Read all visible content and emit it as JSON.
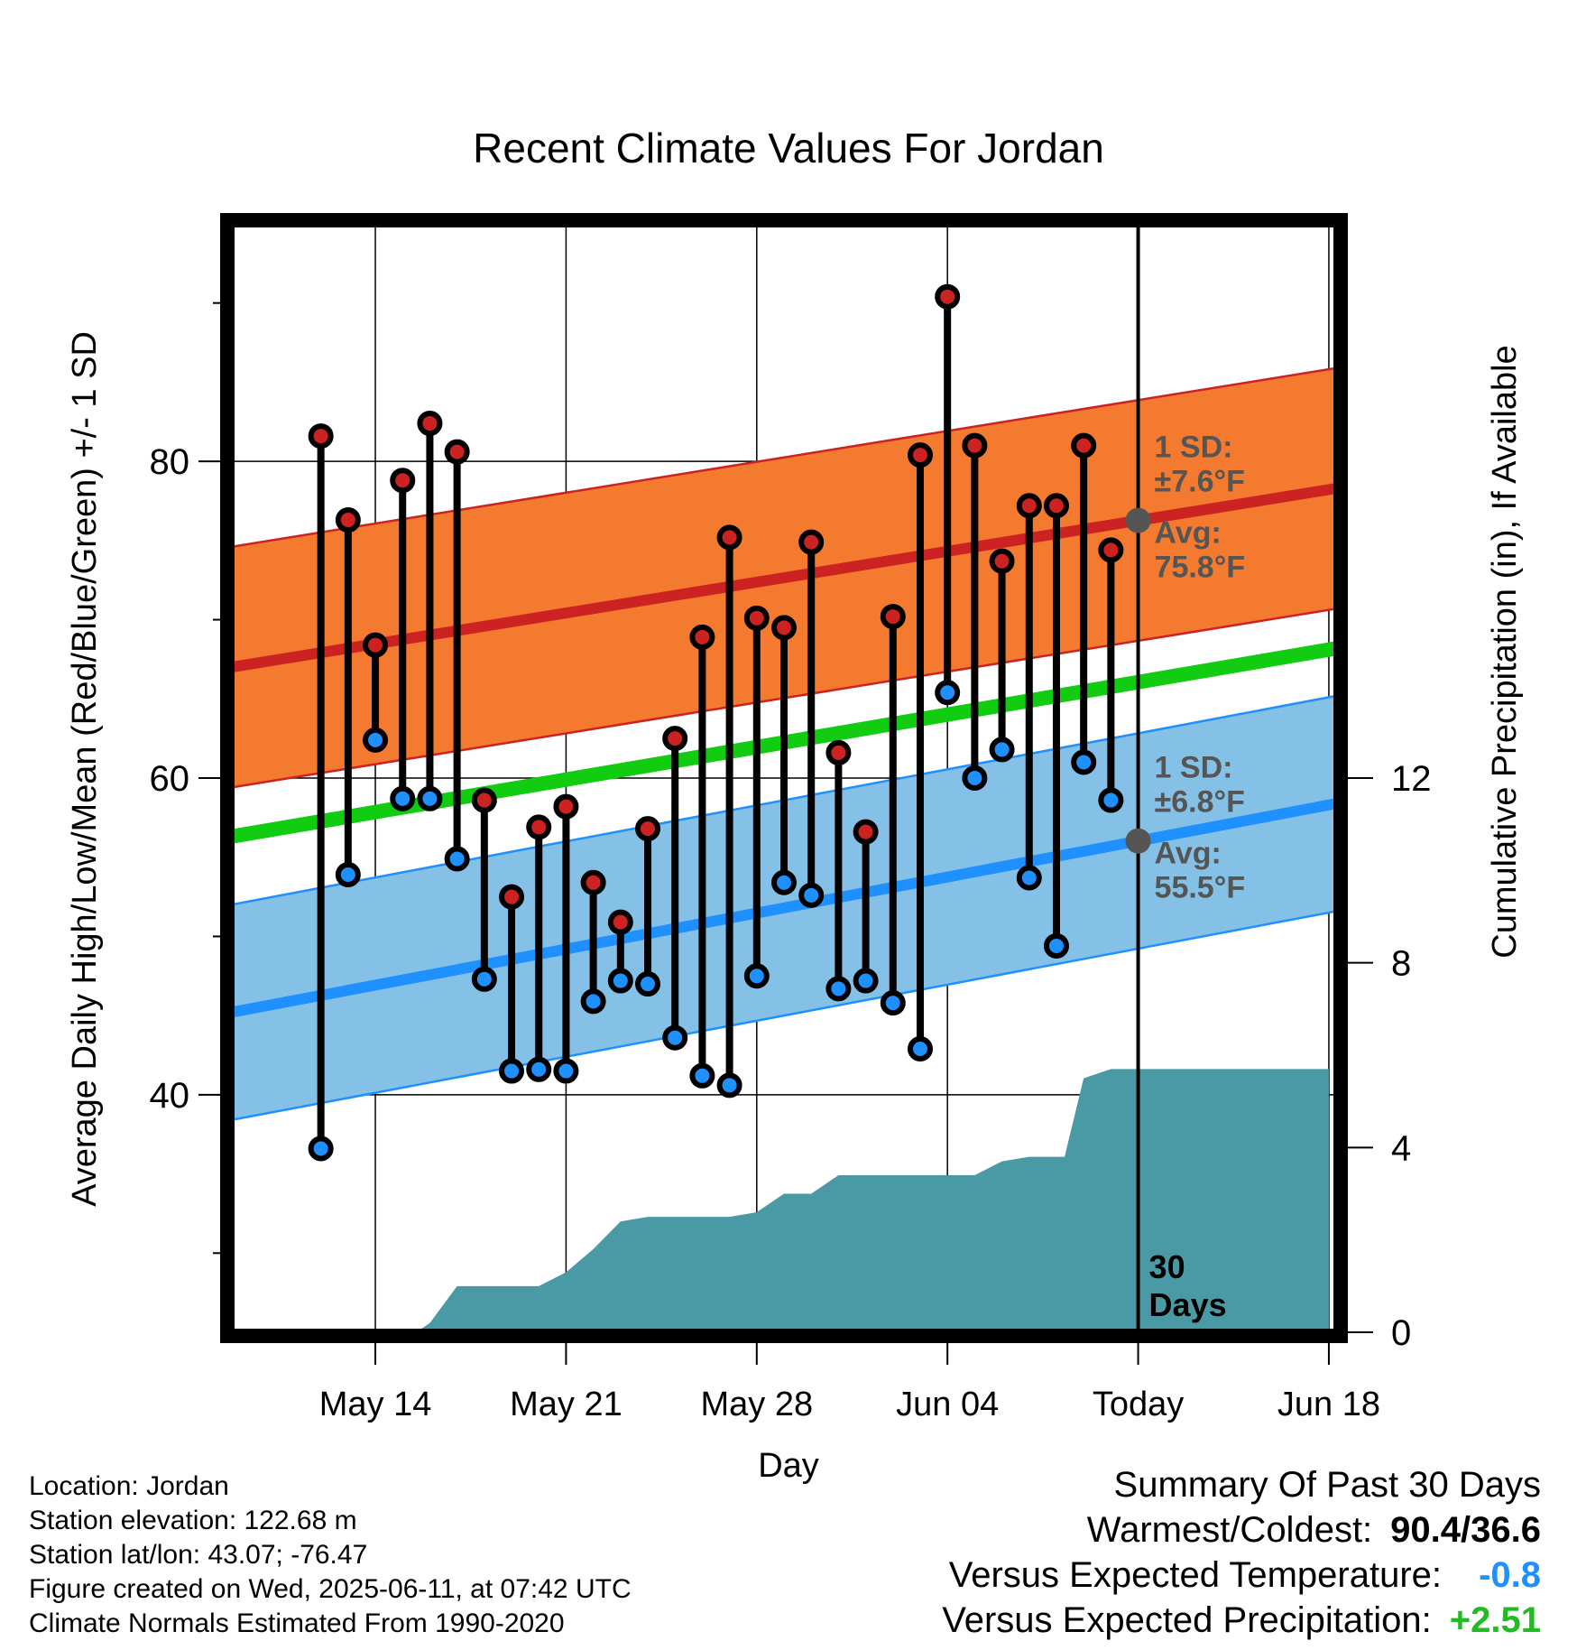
{
  "chart_data": {
    "type": "line",
    "title": "Recent Climate Values For Jordan",
    "xlabel": "Day",
    "ylabel": "Average Daily High/Low/Mean (Red/Blue/Green) +/- 1 SD",
    "y2label": "Cumulative Precipitation (in), If Available",
    "ylim": [
      25,
      95
    ],
    "y2lim": [
      0,
      24
    ],
    "yticks": [
      40,
      60,
      80
    ],
    "y2ticks": [
      0,
      4,
      8,
      12
    ],
    "x_range_days": [
      -33.3,
      7.3
    ],
    "xticks": [
      {
        "day": -28,
        "label": "May 14"
      },
      {
        "day": -21,
        "label": "May 21"
      },
      {
        "day": -14,
        "label": "May 28"
      },
      {
        "day": -7,
        "label": "Jun 04"
      },
      {
        "day": 0,
        "label": "Today"
      },
      {
        "day": 7,
        "label": "Jun 18"
      }
    ],
    "today_label": "30 Days",
    "normals": {
      "high_mean": [
        67.0,
        78.3
      ],
      "high_sd": 7.6,
      "low_mean": [
        45.2,
        58.4
      ],
      "low_sd": 6.8,
      "mean": [
        56.3,
        68.2
      ]
    },
    "annotations": {
      "high_sd": "1 SD: ±7.6°F",
      "high_avg": "Avg: 75.8°F",
      "low_sd": "1 SD: ±6.8°F",
      "low_avg": "Avg: 55.5°F"
    },
    "series": [
      {
        "name": "High",
        "color": "#cc2222",
        "x": [
          -30,
          -29,
          -28,
          -27,
          -26,
          -25,
          -24,
          -23,
          -22,
          -21,
          -20,
          -19,
          -18,
          -17,
          -16,
          -15,
          -14,
          -13,
          -12,
          -11,
          -10,
          -9,
          -8,
          -7,
          -6,
          -5,
          -4,
          -3,
          -2,
          -1
        ],
        "values": [
          81.6,
          76.3,
          68.4,
          78.8,
          82.4,
          80.6,
          58.6,
          52.5,
          56.9,
          58.2,
          53.4,
          50.9,
          56.8,
          62.5,
          68.9,
          75.2,
          70.1,
          69.5,
          74.9,
          61.6,
          56.6,
          70.2,
          80.4,
          90.4,
          81.0,
          73.7,
          77.2,
          77.2,
          81.0,
          74.4
        ]
      },
      {
        "name": "Low",
        "color": "#1e90ff",
        "x": [
          -30,
          -29,
          -28,
          -27,
          -26,
          -25,
          -24,
          -23,
          -22,
          -21,
          -20,
          -19,
          -18,
          -17,
          -16,
          -15,
          -14,
          -13,
          -12,
          -11,
          -10,
          -9,
          -8,
          -7,
          -6,
          -5,
          -4,
          -3,
          -2,
          -1
        ],
        "values": [
          36.6,
          53.9,
          62.4,
          58.7,
          58.7,
          54.9,
          47.3,
          41.5,
          41.6,
          41.5,
          45.9,
          47.2,
          47.0,
          43.6,
          41.2,
          40.6,
          47.5,
          53.4,
          52.6,
          46.7,
          47.2,
          45.8,
          42.9,
          65.4,
          60.0,
          61.8,
          53.7,
          49.4,
          61.0,
          58.6
        ]
      },
      {
        "name": "Cumulative Precipitation",
        "color": "#4a9aa5",
        "x": [
          -30,
          -29,
          -28,
          -27,
          -26.5,
          -26,
          -25,
          -24,
          -23,
          -22,
          -21,
          -20,
          -19,
          -18,
          -17,
          -16,
          -15,
          -14,
          -13,
          -12,
          -11,
          -10,
          -9,
          -8,
          -7,
          -6,
          -5,
          -4,
          -3,
          -2.7,
          -2,
          -1,
          7
        ],
        "values": [
          0,
          0,
          0,
          0,
          0,
          0.2,
          1.0,
          1.0,
          1.0,
          1.0,
          1.3,
          1.8,
          2.4,
          2.5,
          2.5,
          2.5,
          2.5,
          2.6,
          3.0,
          3.0,
          3.4,
          3.4,
          3.4,
          3.4,
          3.4,
          3.4,
          3.7,
          3.8,
          3.8,
          3.8,
          5.5,
          5.7,
          5.7
        ]
      }
    ]
  },
  "footer": {
    "location": "Location: Jordan",
    "elevation": "Station elevation: 122.68 m",
    "latlon": "Station lat/lon: 43.07; -76.47",
    "created": "Figure created on Wed, 2025-06-11, at 07:42 UTC",
    "normals": "Climate Normals Estimated From 1990-2020"
  },
  "summary": {
    "heading": "Summary Of Past 30 Days",
    "warmest_label": "Warmest/Coldest:",
    "warmest_value": "90.4/36.6",
    "temp_label": "Versus Expected Temperature:",
    "temp_value": "-0.8",
    "temp_color": "#1e90ff",
    "precip_label": "Versus Expected Precipitation:",
    "precip_value": "+2.51",
    "precip_color": "#22bb22"
  },
  "colors": {
    "high_band": "#f47a30",
    "high_line": "#cc2222",
    "low_band": "#85c1e6",
    "low_line": "#1e90ff",
    "mean_line": "#11cc11",
    "precip_fill": "#4a9aa5"
  }
}
